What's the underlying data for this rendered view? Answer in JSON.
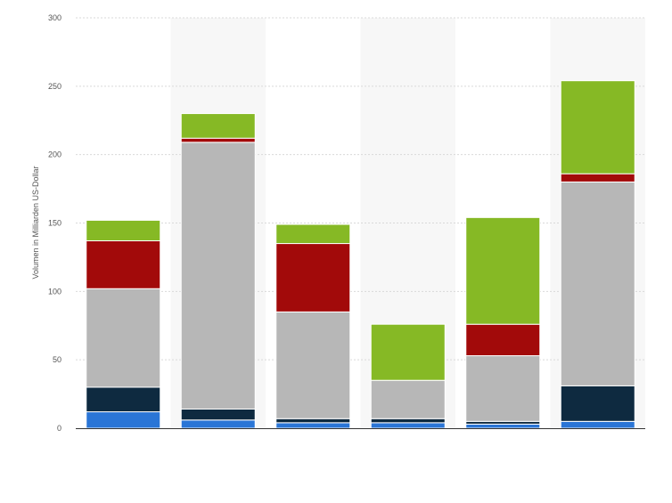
{
  "chart_data": {
    "type": "bar",
    "stacked": true,
    "ylabel": "Volumen in Milliarden US-Dollar",
    "ylim": [
      0,
      300
    ],
    "yticks": [
      0,
      50,
      100,
      150,
      200,
      250,
      300
    ],
    "grid": true,
    "legend": "none",
    "categories": [
      "",
      "",
      "",
      "",
      "",
      ""
    ],
    "series": [
      {
        "color": "#2a75d6",
        "values": [
          12,
          6,
          4,
          4,
          3,
          5
        ]
      },
      {
        "color": "#0e2a40",
        "values": [
          18,
          8,
          3,
          3,
          2,
          26
        ]
      },
      {
        "color": "#b7b7b7",
        "values": [
          72,
          195,
          78,
          28,
          48,
          149
        ]
      },
      {
        "color": "#a20a0a",
        "values": [
          35,
          3,
          50,
          0,
          23,
          6
        ]
      },
      {
        "color": "#86b925",
        "values": [
          15,
          18,
          14,
          41,
          78,
          68
        ]
      }
    ]
  }
}
